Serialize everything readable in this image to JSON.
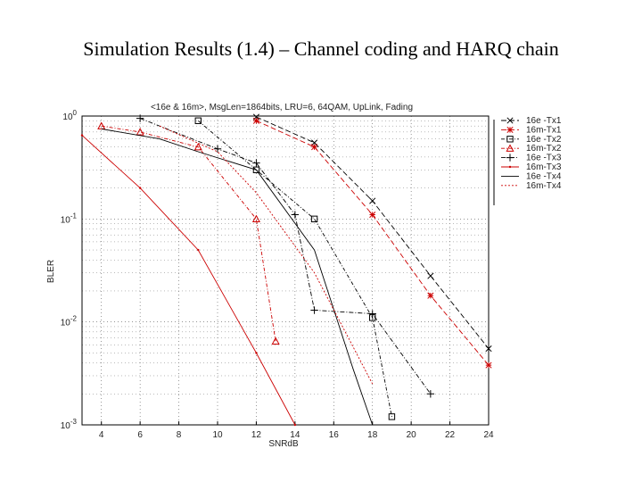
{
  "slide": {
    "title": "Simulation Results (1.4) – Channel coding and HARQ chain"
  },
  "chart_data": {
    "type": "line",
    "title": "<16e & 16m>, MsgLen=1864bits, LRU=6, 64QAM, UpLink, Fading",
    "xlabel": "SNRdB",
    "ylabel": "BLER",
    "xlim": [
      3,
      24
    ],
    "ylim": [
      0.001,
      1
    ],
    "yscale": "log",
    "x_ticks": [
      4,
      6,
      8,
      10,
      12,
      14,
      16,
      18,
      20,
      22,
      24
    ],
    "y_ticks": [
      {
        "value": 1,
        "base": "10",
        "exp": "0"
      },
      {
        "value": 0.1,
        "base": "10",
        "exp": "-1"
      },
      {
        "value": 0.01,
        "base": "10",
        "exp": "-2"
      },
      {
        "value": 0.001,
        "base": "10",
        "exp": "-3"
      }
    ],
    "grid": true,
    "legend_position": "right",
    "series": [
      {
        "name": "16e -Tx1",
        "color": "#000000",
        "dash": "6,3",
        "marker": "x",
        "x": [
          12,
          15,
          18,
          21,
          24
        ],
        "y": [
          0.98,
          0.55,
          0.15,
          0.028,
          0.0055
        ]
      },
      {
        "name": "16m-Tx1",
        "color": "#cc0000",
        "dash": "6,3",
        "marker": "star",
        "x": [
          12,
          15,
          18,
          21,
          24
        ],
        "y": [
          0.9,
          0.5,
          0.11,
          0.018,
          0.0038
        ]
      },
      {
        "name": "16e -Tx2",
        "color": "#000000",
        "dash": "4,2,1,2",
        "marker": "square",
        "x": [
          9,
          12,
          15,
          18,
          19
        ],
        "y": [
          0.9,
          0.3,
          0.1,
          0.011,
          0.0012
        ]
      },
      {
        "name": "16m-Tx2",
        "color": "#cc0000",
        "dash": "4,2,1,2",
        "marker": "triangle",
        "x": [
          4,
          6,
          9,
          12,
          13
        ],
        "y": [
          0.8,
          0.7,
          0.5,
          0.1,
          0.0065
        ]
      },
      {
        "name": "16e -Tx3",
        "color": "#000000",
        "dash": "5,2,1,2",
        "marker": "plus",
        "x": [
          6,
          10,
          12,
          14,
          15,
          18,
          21
        ],
        "y": [
          0.95,
          0.48,
          0.35,
          0.11,
          0.013,
          0.012,
          0.002
        ]
      },
      {
        "name": "16m-Tx3",
        "color": "#cc0000",
        "dash": "",
        "marker": "dot",
        "x": [
          3,
          6,
          9,
          12,
          14
        ],
        "y": [
          0.65,
          0.2,
          0.05,
          0.005,
          0.001
        ]
      },
      {
        "name": "16e -Tx4",
        "color": "#000000",
        "dash": "",
        "marker": "none",
        "x": [
          4,
          7,
          9,
          12,
          15,
          17,
          18
        ],
        "y": [
          0.75,
          0.6,
          0.45,
          0.3,
          0.05,
          0.0035,
          0.001
        ]
      },
      {
        "name": "16m-Tx4",
        "color": "#cc0000",
        "dash": "2,2",
        "marker": "none",
        "x": [
          7,
          10,
          12,
          15,
          18
        ],
        "y": [
          0.8,
          0.45,
          0.18,
          0.03,
          0.0025
        ]
      }
    ]
  }
}
